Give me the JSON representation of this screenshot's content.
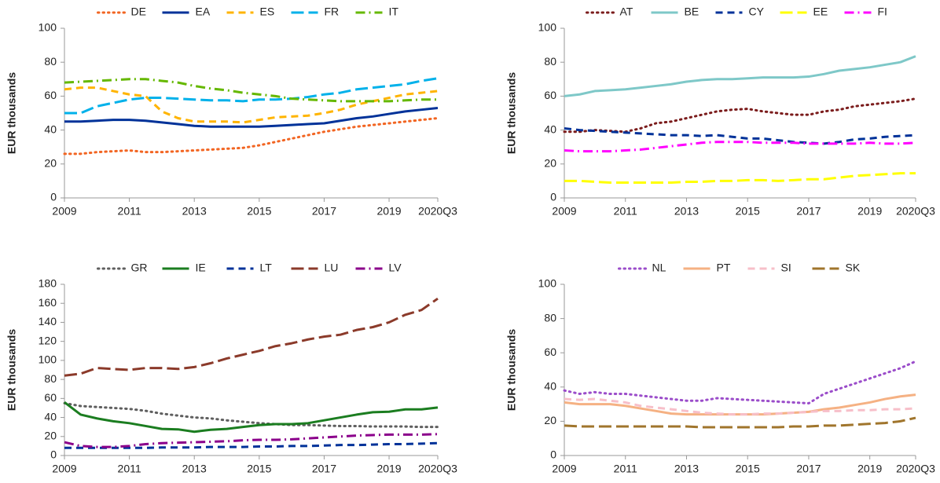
{
  "chart_data": [
    {
      "type": "line",
      "ylabel": "EUR thousands",
      "legend": "top",
      "x": [
        2009,
        2009.5,
        2010,
        2010.5,
        2011,
        2011.5,
        2012,
        2012.5,
        2013,
        2013.5,
        2014,
        2014.5,
        2015,
        2015.5,
        2016,
        2016.5,
        2017,
        2017.5,
        2018,
        2018.5,
        2019,
        2019.5,
        2020,
        2020.5
      ],
      "xlim": [
        2009,
        2020.5
      ],
      "xticks": [
        2009,
        2011,
        2013,
        2015,
        2017,
        2019,
        {
          "value": 2020.5,
          "label": "2020Q3"
        }
      ],
      "ylim": [
        0,
        100
      ],
      "yticks": [
        0,
        20,
        40,
        60,
        80,
        100
      ],
      "series": [
        {
          "name": "DE",
          "color": "#f26522",
          "style": "dotted",
          "values": [
            26,
            26,
            27,
            27.5,
            28,
            27,
            27,
            27.5,
            28,
            28.5,
            29,
            29.5,
            31,
            33,
            35,
            37,
            39,
            40.5,
            42,
            43,
            44,
            45,
            46,
            47
          ]
        },
        {
          "name": "EA",
          "color": "#003299",
          "style": "solid",
          "values": [
            45,
            45,
            45.5,
            46,
            46,
            45.5,
            44.5,
            43.5,
            42.5,
            42,
            42,
            42,
            42,
            42.5,
            43,
            43.5,
            44,
            45.5,
            47,
            48,
            49.5,
            51,
            52,
            53
          ]
        },
        {
          "name": "ES",
          "color": "#ffb400",
          "style": "dashed",
          "values": [
            64,
            65,
            65,
            63,
            61,
            60,
            51,
            47,
            45,
            45,
            45,
            44.5,
            46,
            47.5,
            48,
            48.5,
            50,
            52,
            55,
            57,
            59,
            61,
            62,
            63
          ]
        },
        {
          "name": "FR",
          "color": "#00b1ea",
          "style": "longdash",
          "values": [
            50,
            50,
            54,
            56,
            58,
            59,
            59,
            58.5,
            58,
            57.5,
            57.5,
            57,
            58,
            58,
            58.5,
            59.5,
            61,
            62,
            64,
            65,
            66,
            67,
            69,
            70.5
          ]
        },
        {
          "name": "IT",
          "color": "#65b800",
          "style": "dashdot",
          "values": [
            68,
            68.5,
            69,
            69.5,
            70,
            70,
            69,
            68,
            66,
            64.5,
            63.5,
            62,
            61,
            60,
            58.5,
            58,
            57.5,
            57,
            57,
            57,
            57,
            57.5,
            58,
            58
          ]
        }
      ]
    },
    {
      "type": "line",
      "ylabel": "EUR thousands",
      "legend": "top",
      "x": [
        2009,
        2009.5,
        2010,
        2010.5,
        2011,
        2011.5,
        2012,
        2012.5,
        2013,
        2013.5,
        2014,
        2014.5,
        2015,
        2015.5,
        2016,
        2016.5,
        2017,
        2017.5,
        2018,
        2018.5,
        2019,
        2019.5,
        2020,
        2020.5
      ],
      "xlim": [
        2009,
        2020.5
      ],
      "xticks": [
        2009,
        2011,
        2013,
        2015,
        2017,
        2019,
        {
          "value": 2020.5,
          "label": "2020Q3"
        }
      ],
      "ylim": [
        0,
        100
      ],
      "yticks": [
        0,
        20,
        40,
        60,
        80,
        100
      ],
      "series": [
        {
          "name": "AT",
          "color": "#7b1c1c",
          "style": "dotted",
          "values": [
            39,
            39,
            40,
            39.5,
            39,
            41,
            44,
            45,
            47,
            49,
            51,
            52,
            52.5,
            51,
            50,
            49,
            49,
            51,
            52,
            54,
            55,
            56,
            57,
            58.5
          ]
        },
        {
          "name": "BE",
          "color": "#7ec8c8",
          "style": "solid",
          "values": [
            60,
            61,
            63,
            63.5,
            64,
            65,
            66,
            67,
            68.5,
            69.5,
            70,
            70,
            70.5,
            71,
            71,
            71,
            71.5,
            73,
            75,
            76,
            77,
            78.5,
            80,
            83.5
          ]
        },
        {
          "name": "CY",
          "color": "#003299",
          "style": "dashed",
          "values": [
            41,
            40,
            39.5,
            39,
            38.5,
            38,
            37.5,
            37,
            37,
            36.5,
            37,
            36,
            35,
            35,
            34,
            33,
            32.5,
            32,
            33,
            34.5,
            35,
            36,
            36.5,
            37
          ]
        },
        {
          "name": "EE",
          "color": "#ffff00",
          "style": "longdash",
          "values": [
            10,
            10,
            9.5,
            9,
            9,
            9,
            9,
            9,
            9.5,
            9.5,
            10,
            10,
            10.5,
            10.5,
            10,
            10.5,
            11,
            11,
            12,
            13,
            13.5,
            14,
            14.5,
            14.5
          ]
        },
        {
          "name": "FI",
          "color": "#ff00ff",
          "style": "dashdot",
          "values": [
            28,
            27.5,
            27.5,
            27.5,
            28,
            28.5,
            29.5,
            30.5,
            31.5,
            32.5,
            33,
            33,
            33,
            32.5,
            32.5,
            32.5,
            32,
            32,
            32,
            32,
            32.5,
            32,
            32,
            32.5
          ]
        }
      ]
    },
    {
      "type": "line",
      "ylabel": "EUR thousands",
      "legend": "top",
      "x": [
        2009,
        2009.5,
        2010,
        2010.5,
        2011,
        2011.5,
        2012,
        2012.5,
        2013,
        2013.5,
        2014,
        2014.5,
        2015,
        2015.5,
        2016,
        2016.5,
        2017,
        2017.5,
        2018,
        2018.5,
        2019,
        2019.5,
        2020,
        2020.5
      ],
      "xlim": [
        2009,
        2020.5
      ],
      "xticks": [
        2009,
        2011,
        2013,
        2015,
        2017,
        2019,
        {
          "value": 2020.5,
          "label": "2020Q3"
        }
      ],
      "ylim": [
        0,
        180
      ],
      "yticks": [
        0,
        20,
        40,
        60,
        80,
        100,
        120,
        140,
        160,
        180
      ],
      "series": [
        {
          "name": "GR",
          "color": "#5f5f5f",
          "style": "dotted",
          "values": [
            55,
            52,
            51,
            50,
            49,
            47,
            44,
            42,
            40,
            39,
            37,
            35.5,
            34,
            33,
            32,
            32,
            31.5,
            31,
            31,
            30.5,
            30.5,
            30.5,
            30,
            30
          ]
        },
        {
          "name": "IE",
          "color": "#1b7d20",
          "style": "solid",
          "values": [
            56,
            43,
            39,
            36,
            34,
            31,
            28,
            27.5,
            25,
            27,
            28,
            30,
            32,
            33,
            33,
            34,
            37,
            40,
            43,
            45.5,
            46,
            48.5,
            48.5,
            50.5
          ]
        },
        {
          "name": "LT",
          "color": "#003299",
          "style": "dashed",
          "values": [
            8,
            8,
            8,
            8,
            8,
            8,
            8.5,
            8.5,
            8.5,
            9,
            9,
            9,
            9.5,
            9.5,
            10,
            10,
            10.5,
            11,
            11,
            11.5,
            12,
            12,
            12.5,
            13
          ]
        },
        {
          "name": "LU",
          "color": "#8b3a2a",
          "style": "longdash",
          "values": [
            84,
            86,
            92,
            91,
            90,
            92,
            92,
            91,
            93,
            97,
            102,
            106,
            110,
            115,
            118,
            122,
            125,
            127,
            132,
            135,
            140,
            148,
            153,
            165
          ]
        },
        {
          "name": "LV",
          "color": "#8b008b",
          "style": "dashdot",
          "values": [
            14,
            10,
            9,
            9,
            10,
            12,
            13,
            13.5,
            14,
            14.5,
            15,
            16,
            16.5,
            16.5,
            17,
            18,
            19,
            20,
            21,
            21.5,
            22,
            22,
            22,
            22.5
          ]
        }
      ]
    },
    {
      "type": "line",
      "ylabel": "EUR thousands",
      "legend": "top",
      "x": [
        2009,
        2009.5,
        2010,
        2010.5,
        2011,
        2011.5,
        2012,
        2012.5,
        2013,
        2013.5,
        2014,
        2014.5,
        2015,
        2015.5,
        2016,
        2016.5,
        2017,
        2017.5,
        2018,
        2018.5,
        2019,
        2019.5,
        2020,
        2020.5
      ],
      "xlim": [
        2009,
        2020.5
      ],
      "xticks": [
        2009,
        2011,
        2013,
        2015,
        2017,
        2019,
        {
          "value": 2020.5,
          "label": "2020Q3"
        }
      ],
      "ylim": [
        0,
        100
      ],
      "yticks": [
        0,
        20,
        40,
        60,
        80,
        100
      ],
      "series": [
        {
          "name": "NL",
          "color": "#9b4dca",
          "style": "dotted",
          "values": [
            38,
            36,
            37,
            36,
            36,
            35,
            34,
            33,
            32,
            32,
            33.5,
            33,
            32.5,
            32,
            31.5,
            31,
            30.5,
            36,
            39,
            42,
            45,
            48,
            51,
            55
          ]
        },
        {
          "name": "PT",
          "color": "#f5b183",
          "style": "solid",
          "values": [
            31,
            30,
            30,
            30,
            29,
            27.5,
            26,
            24.5,
            24,
            24,
            24,
            24,
            24,
            24,
            24.5,
            25,
            25.5,
            27,
            28,
            29.5,
            31,
            33,
            34.5,
            35.5
          ]
        },
        {
          "name": "SI",
          "color": "#f7bfc9",
          "style": "dashed",
          "values": [
            33,
            32.5,
            33,
            32,
            31,
            29,
            28,
            27,
            26,
            25,
            24.5,
            24,
            24,
            24.5,
            24.5,
            25,
            25.5,
            26,
            26,
            26.5,
            26.5,
            27,
            27,
            27.5
          ]
        },
        {
          "name": "SK",
          "color": "#a0752c",
          "style": "longdash",
          "values": [
            17.5,
            17,
            17,
            17,
            17,
            17,
            17,
            17,
            17,
            16.5,
            16.5,
            16.5,
            16.5,
            16.5,
            16.5,
            17,
            17,
            17.5,
            17.5,
            18,
            18.5,
            19,
            20,
            22
          ]
        }
      ]
    }
  ]
}
